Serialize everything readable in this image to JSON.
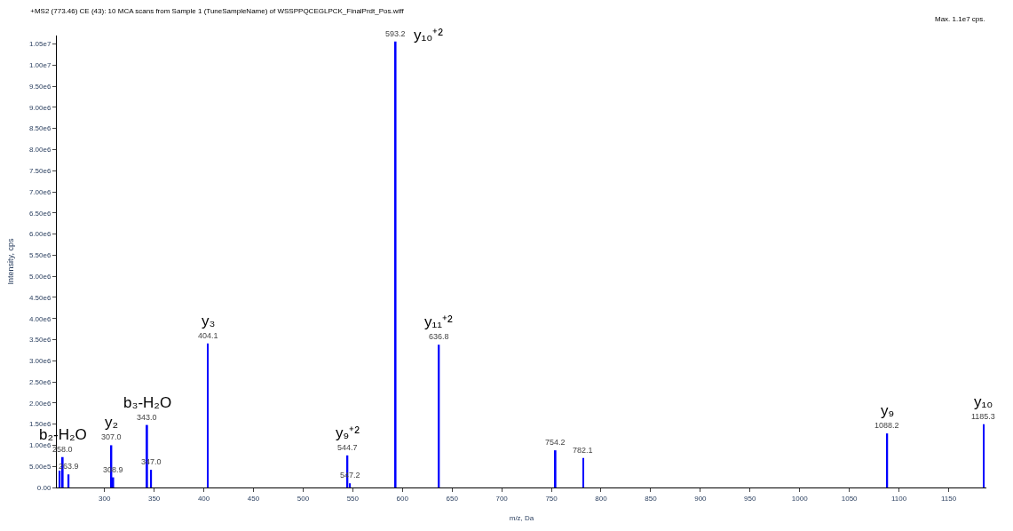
{
  "chart_data": {
    "type": "bar",
    "title": "+MS2 (773.46) CE (43): 10 MCA scans from Sample 1 (TuneSampleName) of WSSPPQCEGLPCK_FinalPrdt_Pos.wiff",
    "xlabel": "m/z, Da",
    "ylabel": "Intensity, cps",
    "x": [
      255.0,
      258.0,
      263.9,
      307.0,
      308.9,
      343.0,
      347.0,
      404.1,
      544.7,
      547.2,
      593.2,
      636.8,
      754.2,
      782.1,
      1088.2,
      1185.3
    ],
    "values": [
      400000,
      720000,
      310000,
      1000000,
      240000,
      1480000,
      420000,
      3410000,
      760000,
      100000,
      10560000,
      3380000,
      880000,
      700000,
      1280000,
      1500000
    ],
    "color": "#0000ff",
    "xlim": [
      252,
      1188
    ],
    "xticks": [
      300,
      350,
      400,
      450,
      500,
      550,
      600,
      650,
      700,
      750,
      800,
      850,
      900,
      950,
      1000,
      1050,
      1100,
      1150
    ],
    "ylim": [
      0,
      10700000
    ],
    "yticks": [
      {
        "value": 0,
        "label": "0.00"
      },
      {
        "value": 500000,
        "label": "5.00e5"
      },
      {
        "value": 1000000,
        "label": "1.00e6"
      },
      {
        "value": 1500000,
        "label": "1.50e6"
      },
      {
        "value": 2000000,
        "label": "2.00e6"
      },
      {
        "value": 2500000,
        "label": "2.50e6"
      },
      {
        "value": 3000000,
        "label": "3.00e6"
      },
      {
        "value": 3500000,
        "label": "3.50e6"
      },
      {
        "value": 4000000,
        "label": "4.00e6"
      },
      {
        "value": 4500000,
        "label": "4.50e6"
      },
      {
        "value": 5000000,
        "label": "5.00e6"
      },
      {
        "value": 5500000,
        "label": "5.50e6"
      },
      {
        "value": 6000000,
        "label": "6.00e6"
      },
      {
        "value": 6500000,
        "label": "6.50e6"
      },
      {
        "value": 7000000,
        "label": "7.00e6"
      },
      {
        "value": 7500000,
        "label": "7.50e6"
      },
      {
        "value": 8000000,
        "label": "8.00e6"
      },
      {
        "value": 8500000,
        "label": "8.50e6"
      },
      {
        "value": 9000000,
        "label": "9.00e6"
      },
      {
        "value": 9500000,
        "label": "9.50e6"
      },
      {
        "value": 10000000,
        "label": "1.00e7"
      },
      {
        "value": 10500000,
        "label": "1.05e7"
      }
    ],
    "annotations": [
      "Max. 1.1e7 cps.",
      {
        "text": "258.0",
        "x": 258.0,
        "y": 720000
      },
      {
        "text": "b₂-H₂O",
        "x": 258.0,
        "y": 720000
      },
      {
        "text": "263.9",
        "x": 263.9,
        "y": 310000
      },
      {
        "text": "307.0",
        "x": 307.0,
        "y": 1000000
      },
      {
        "text": "y₂",
        "x": 307.0,
        "y": 1000000
      },
      {
        "text": "308.9",
        "x": 308.9,
        "y": 240000
      },
      {
        "text": "343.0",
        "x": 343.0,
        "y": 1480000
      },
      {
        "text": "b₃-H₂O",
        "x": 343.0,
        "y": 1480000
      },
      {
        "text": "347.0",
        "x": 347.0,
        "y": 420000
      },
      {
        "text": "404.1",
        "x": 404.1,
        "y": 3410000
      },
      {
        "text": "y₃",
        "x": 404.1,
        "y": 3410000
      },
      {
        "text": "544.7",
        "x": 544.7,
        "y": 760000
      },
      {
        "text": "y₉⁺²",
        "x": 544.7,
        "y": 760000
      },
      {
        "text": "547.2",
        "x": 547.2,
        "y": 100000
      },
      {
        "text": "593.2",
        "x": 593.2,
        "y": 10560000
      },
      {
        "text": "y₁₀⁺²",
        "x": 593.2,
        "y": 10560000
      },
      {
        "text": "636.8",
        "x": 636.8,
        "y": 3380000
      },
      {
        "text": "y₁₁⁺²",
        "x": 636.8,
        "y": 3380000
      },
      {
        "text": "754.2",
        "x": 754.2,
        "y": 880000
      },
      {
        "text": "782.1",
        "x": 782.1,
        "y": 700000
      },
      {
        "text": "1088.2",
        "x": 1088.2,
        "y": 1280000
      },
      {
        "text": "y₉",
        "x": 1088.2,
        "y": 1280000
      },
      {
        "text": "1185.3",
        "x": 1185.3,
        "y": 1500000
      },
      {
        "text": "y₁₀",
        "x": 1185.3,
        "y": 1500000
      }
    ]
  }
}
